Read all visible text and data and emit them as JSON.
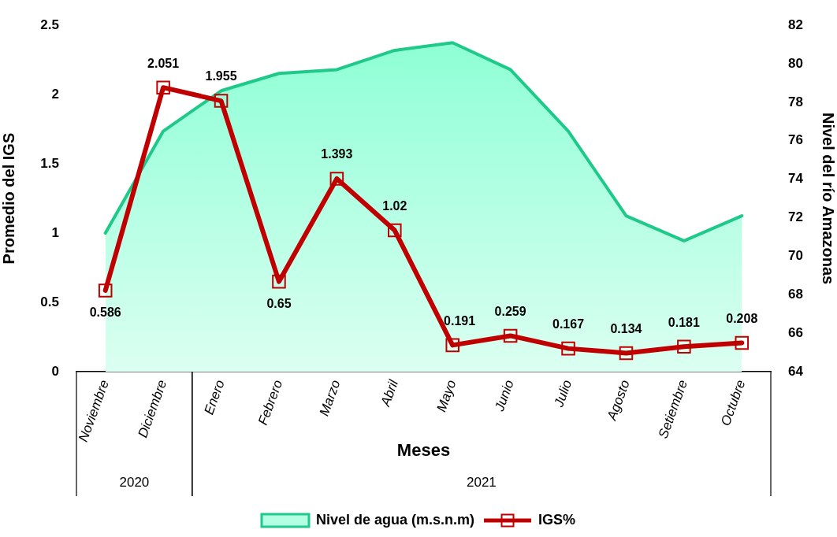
{
  "chart_data": {
    "type": "line",
    "xlabel": "Meses",
    "ylabel": "Promedio del IGS",
    "y2label": "Nivel del río Amazonas",
    "categories": [
      "Noviembre",
      "Diciembre",
      "Enero",
      "Febrero",
      "Marzo",
      "Abril",
      "Mayo",
      "Junio",
      "Julio",
      "Agosto",
      "Setiembre",
      "Octubre"
    ],
    "series": [
      {
        "name": "Nivel de agua (m.s.n.m)",
        "type": "area",
        "axis": "y2",
        "color": "#1ec98a",
        "values": [
          71.2,
          76.5,
          78.6,
          79.5,
          79.7,
          80.7,
          81.1,
          79.7,
          76.5,
          72.1,
          70.8,
          72.1
        ]
      },
      {
        "name": "IGS%",
        "color": "#c00000",
        "marker": "square",
        "values": [
          0.586,
          2.051,
          1.955,
          0.65,
          1.393,
          1.02,
          0.191,
          0.259,
          0.167,
          0.134,
          0.181,
          0.208
        ],
        "value_labels": [
          "0.586",
          "2.051",
          "1.955",
          "0.65",
          "1.393",
          "1.02",
          "0.191",
          "0.259",
          "0.167",
          "0.134",
          "0.181",
          "0.208"
        ]
      }
    ],
    "ylim": [
      0,
      2.5
    ],
    "yticks": [
      0,
      0.5,
      1,
      1.5,
      2,
      2.5
    ],
    "y2lim": [
      64,
      82
    ],
    "y2ticks": [
      64,
      66,
      68,
      70,
      72,
      74,
      76,
      78,
      80,
      82
    ],
    "annotations": [
      "2020",
      "2021"
    ],
    "grid": false,
    "legend": "bottom",
    "line_style": "solid"
  }
}
